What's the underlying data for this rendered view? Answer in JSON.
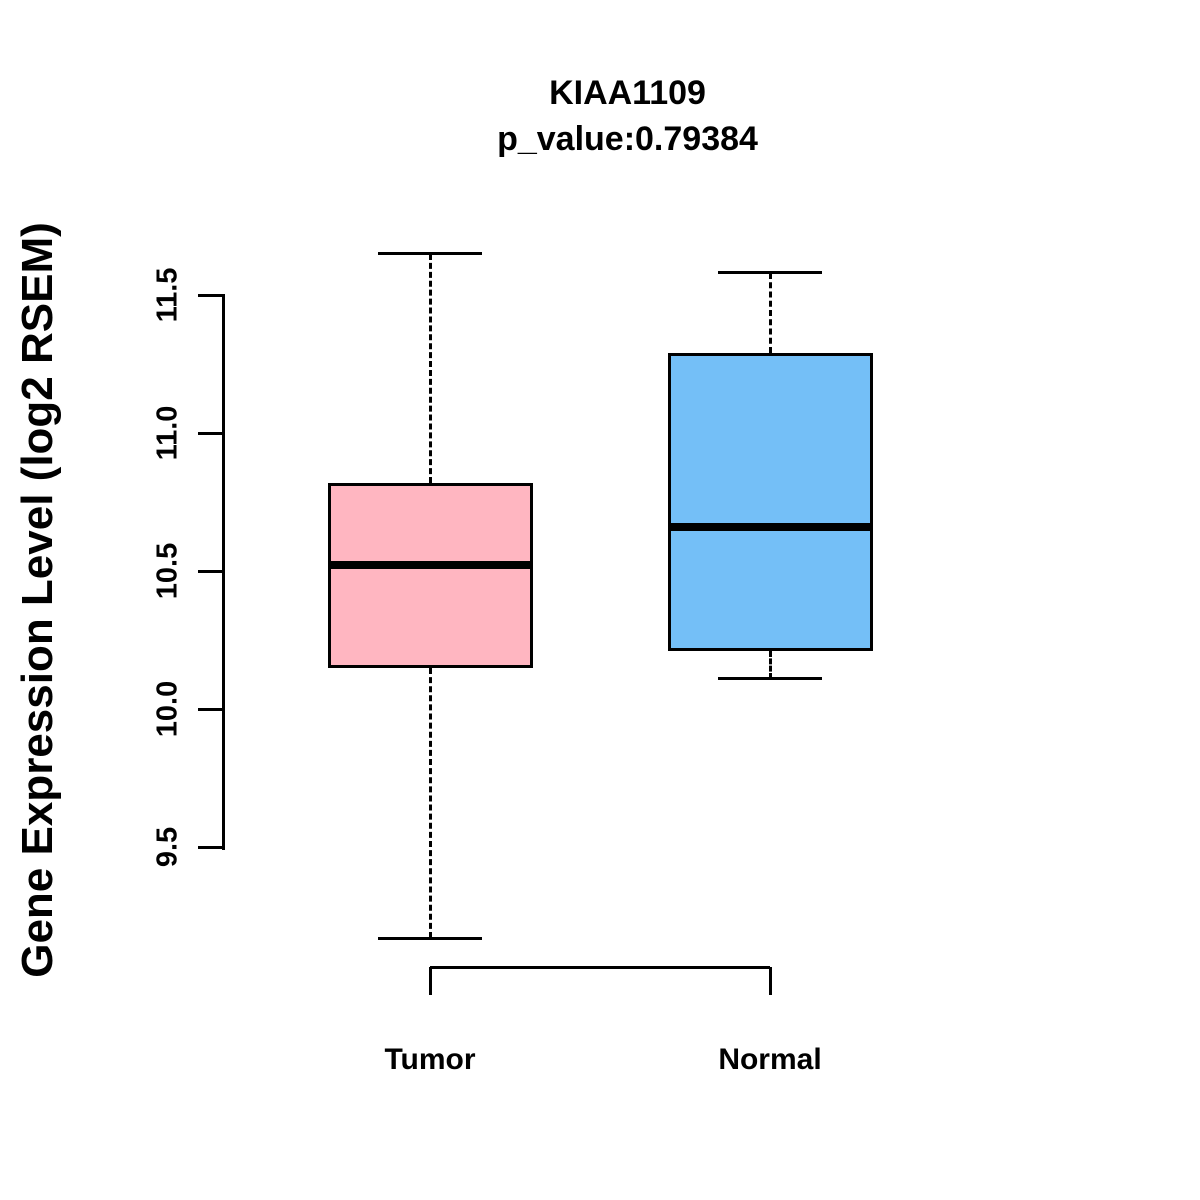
{
  "title": {
    "line1": "KIAA1109",
    "line2": "p_value:0.79384"
  },
  "chart_data": {
    "type": "boxplot",
    "title": "KIAA1109",
    "subtitle": "p_value:0.79384",
    "ylabel": "Gene Expression Level (log2 RSEM)",
    "categories": [
      "Tumor",
      "Normal"
    ],
    "ylim": [
      9.1,
      11.7
    ],
    "grid": false,
    "yticks": [
      {
        "value": 9.5,
        "label": "9.5"
      },
      {
        "value": 10.0,
        "label": "10.0"
      },
      {
        "value": 10.5,
        "label": "10.5"
      },
      {
        "value": 11.0,
        "label": "11.0"
      },
      {
        "value": 11.5,
        "label": "11.5"
      }
    ],
    "series": [
      {
        "name": "Tumor",
        "color": "#FFB6C1",
        "whisker_low": 9.17,
        "q1": 10.15,
        "median": 10.52,
        "q3": 10.82,
        "whisker_high": 11.65
      },
      {
        "name": "Normal",
        "color": "#74BFF7",
        "whisker_low": 10.11,
        "q1": 10.21,
        "median": 10.66,
        "q3": 11.29,
        "whisker_high": 11.58
      }
    ],
    "colors": {
      "box_border": "#000000",
      "median": "#000000",
      "tumor_fill": "#FFB6C1",
      "normal_fill": "#74BFF7"
    }
  }
}
